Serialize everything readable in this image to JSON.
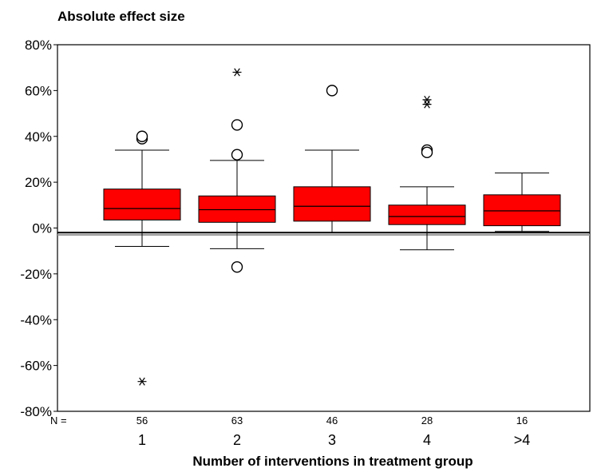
{
  "chart_data": {
    "type": "box",
    "title": "Absolute effect size",
    "xlabel": "Number of interventions in treatment group",
    "ylabel": "",
    "ylim": [
      -80,
      80
    ],
    "yticks": [
      80,
      60,
      40,
      20,
      0,
      -20,
      -40,
      -60,
      -80
    ],
    "ytick_labels": [
      "80%",
      "60%",
      "40%",
      "20%",
      "0%",
      "-20%",
      "-40%",
      "-60%",
      "-80%"
    ],
    "n_label": "N =",
    "categories": [
      "1",
      "2",
      "3",
      "4",
      ">4"
    ],
    "n_counts": [
      "56",
      "63",
      "46",
      "28",
      "16"
    ],
    "box_color": "#ff0000",
    "reference_lines": [
      -2,
      -3
    ],
    "reference_line_colors": [
      "#000000",
      "#999999"
    ],
    "boxes": [
      {
        "category": "1",
        "whisker_low": -8,
        "q1": 3.5,
        "median": 8.5,
        "q3": 17,
        "whisker_high": 34,
        "outliers_circle": [
          39,
          40
        ],
        "outliers_star": [
          -67
        ]
      },
      {
        "category": "2",
        "whisker_low": -9,
        "q1": 2.5,
        "median": 8,
        "q3": 14,
        "whisker_high": 29.5,
        "outliers_circle": [
          45,
          32,
          -17
        ],
        "outliers_star": [
          68
        ]
      },
      {
        "category": "3",
        "whisker_low": -2,
        "q1": 3,
        "median": 9.5,
        "q3": 18,
        "whisker_high": 34,
        "outliers_circle": [
          60
        ],
        "outliers_star": []
      },
      {
        "category": "4",
        "whisker_low": -9.5,
        "q1": 1.5,
        "median": 5,
        "q3": 10,
        "whisker_high": 18,
        "outliers_circle": [
          34,
          33
        ],
        "outliers_star": [
          56,
          54
        ]
      },
      {
        "category": ">4",
        "whisker_low": -1.5,
        "q1": 1,
        "median": 7.5,
        "q3": 14.5,
        "whisker_high": 24,
        "outliers_circle": [],
        "outliers_star": []
      }
    ]
  }
}
